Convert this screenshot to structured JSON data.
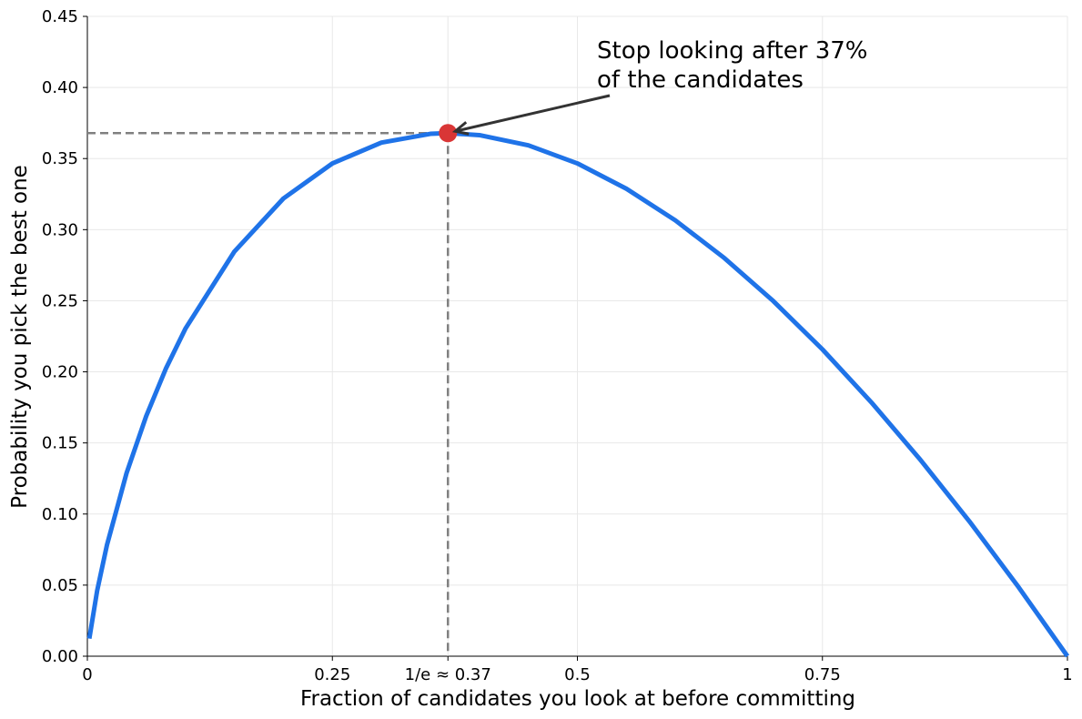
{
  "chart_data": {
    "type": "line",
    "xlabel": "Fraction of candidates you look at before committing",
    "ylabel": "Probability you pick the best one",
    "x": [
      0.002,
      0.01,
      0.02,
      0.04,
      0.06,
      0.08,
      0.1,
      0.15,
      0.2,
      0.25,
      0.3,
      0.35,
      0.3679,
      0.4,
      0.45,
      0.5,
      0.55,
      0.6,
      0.65,
      0.7,
      0.75,
      0.8,
      0.85,
      0.9,
      0.95,
      1.0
    ],
    "series": [
      {
        "color": "#1f73e8",
        "values": [
          0.0124,
          0.0461,
          0.0782,
          0.1288,
          0.1688,
          0.2021,
          0.2303,
          0.2846,
          0.3219,
          0.3466,
          0.3612,
          0.3674,
          0.3679,
          0.3665,
          0.3593,
          0.3466,
          0.3288,
          0.3065,
          0.28,
          0.2497,
          0.2158,
          0.1785,
          0.1381,
          0.0948,
          0.0487,
          0
        ]
      }
    ],
    "peak": {
      "x": 0.3679,
      "y": 0.3679,
      "color": "#d93636"
    },
    "annotation": [
      "Stop looking after 37%",
      "of the candidates"
    ],
    "xlim": [
      0,
      1
    ],
    "ylim": [
      0,
      0.45
    ],
    "xticks": [
      0,
      0.25,
      {
        "value": 0.3679,
        "label": "1/e ≈ 0.37"
      },
      0.5,
      0.75,
      1
    ],
    "yticks": [
      {
        "value": 0,
        "label": "0.00"
      },
      {
        "value": 0.05,
        "label": "0.05"
      },
      {
        "value": 0.1,
        "label": "0.10"
      },
      {
        "value": 0.15,
        "label": "0.15"
      },
      {
        "value": 0.2,
        "label": "0.20"
      },
      {
        "value": 0.25,
        "label": "0.25"
      },
      {
        "value": 0.3,
        "label": "0.30"
      },
      {
        "value": 0.35,
        "label": "0.35"
      },
      {
        "value": 0.4,
        "label": "0.40"
      },
      {
        "value": 0.45,
        "label": "0.45"
      }
    ],
    "grid": true
  }
}
